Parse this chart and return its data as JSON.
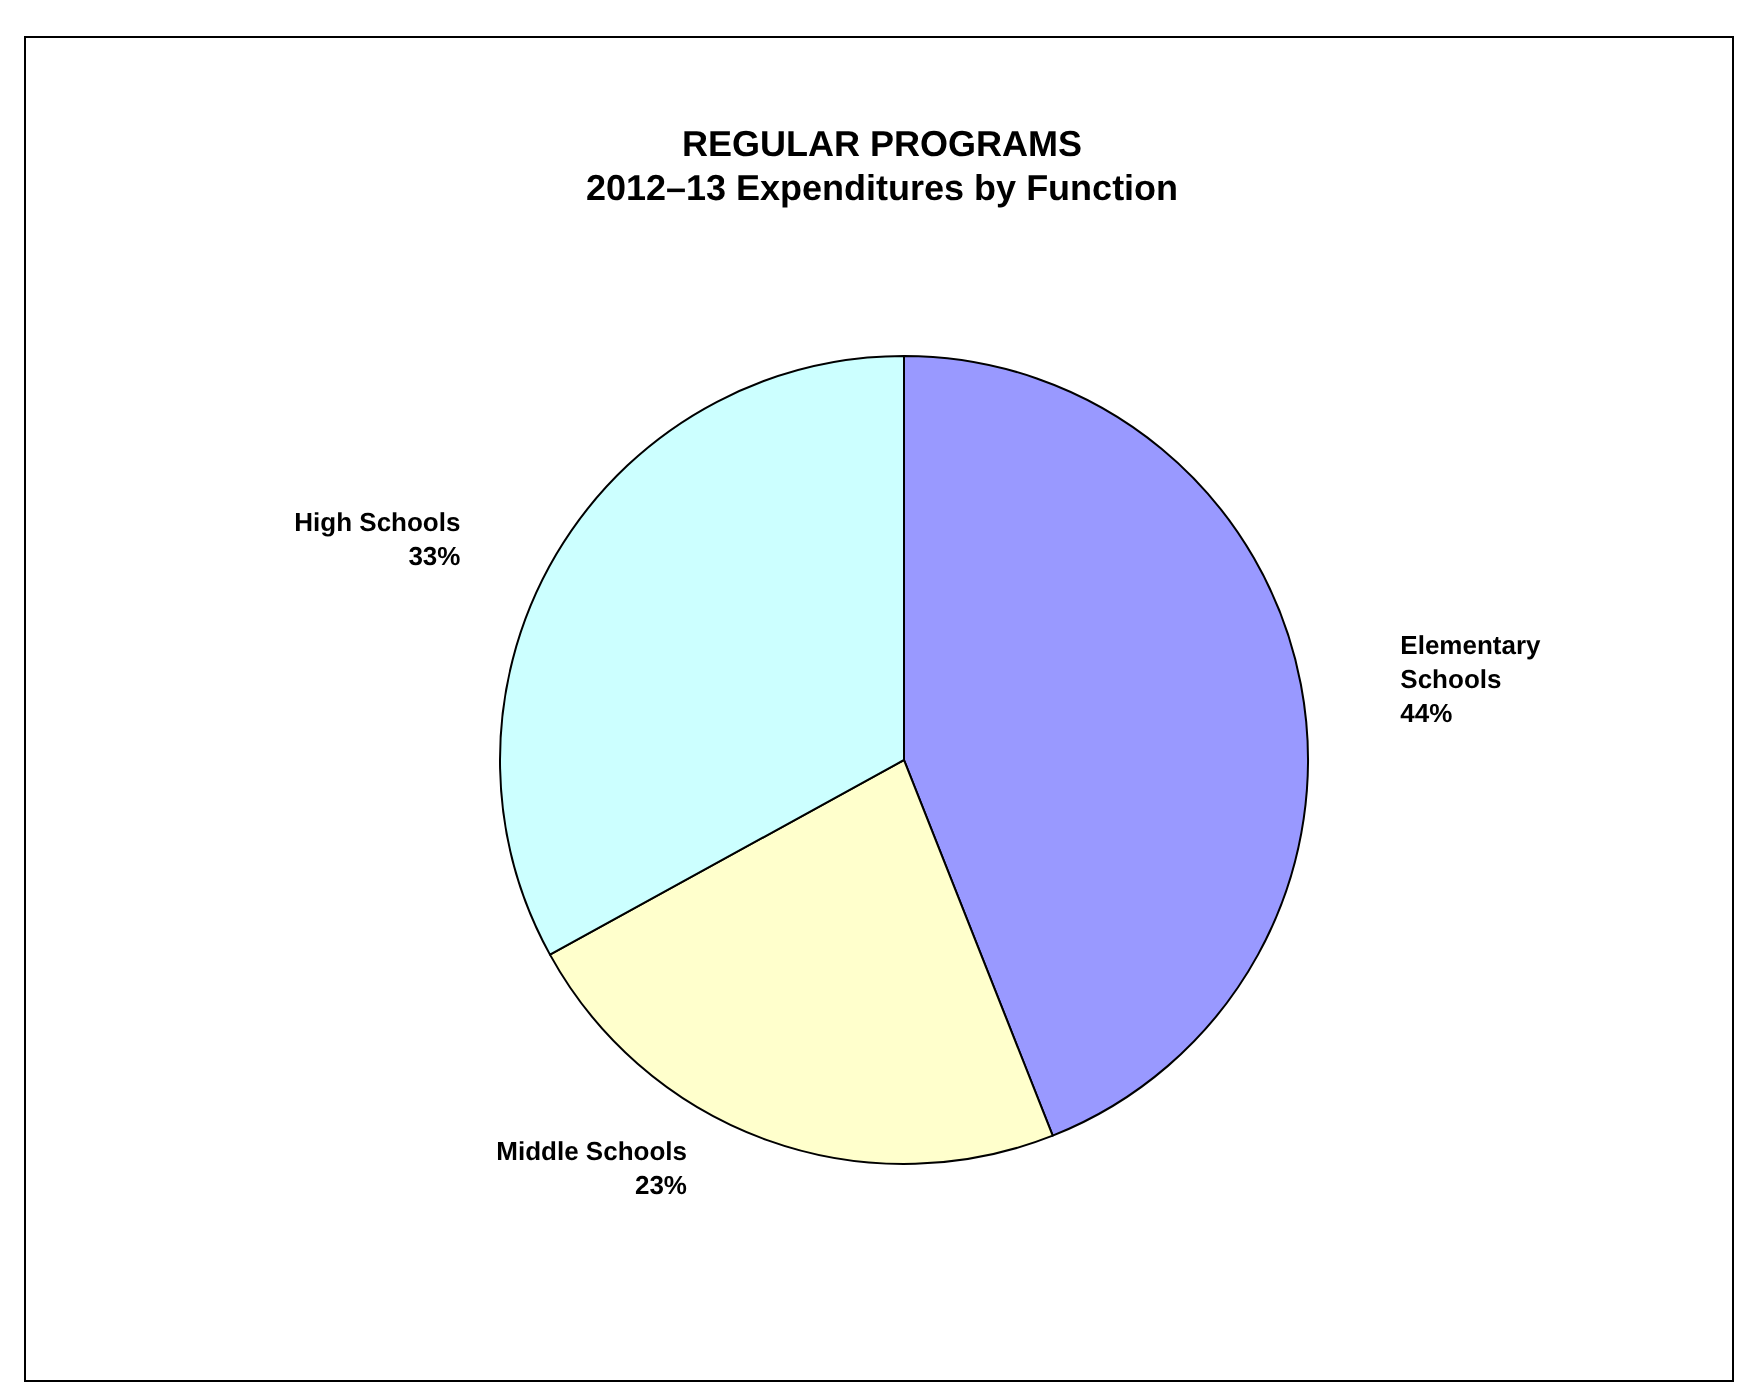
{
  "chart_data": {
    "type": "pie",
    "title": "REGULAR PROGRAMS",
    "subtitle": "2012–13 Expenditures by Function",
    "categories": [
      "Elementary Schools",
      "Middle Schools",
      "High Schools"
    ],
    "values": [
      44,
      23,
      33
    ],
    "value_labels": [
      "44%",
      "23%",
      "33%"
    ],
    "colors": [
      "#9999ff",
      "#ffffcc",
      "#ccffff"
    ],
    "legend": false
  }
}
